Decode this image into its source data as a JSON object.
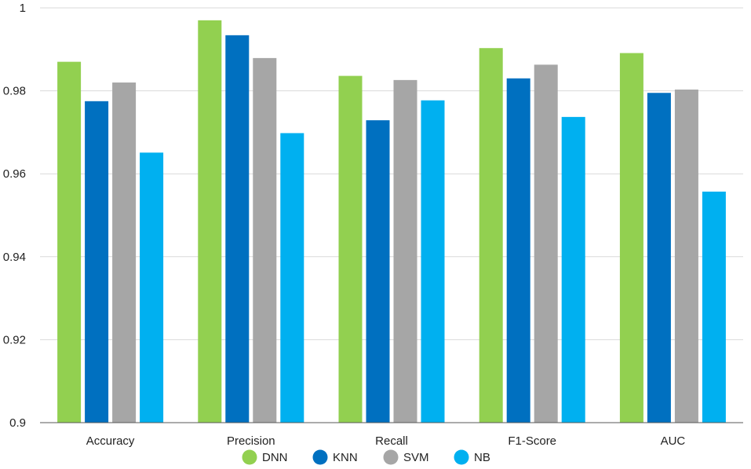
{
  "chart_data": {
    "type": "bar",
    "title": "",
    "xlabel": "",
    "ylabel": "",
    "categories": [
      "Accuracy",
      "Precision",
      "Recall",
      "F1-Score",
      "AUC"
    ],
    "series": [
      {
        "name": "DNN",
        "color": "#92d050",
        "values": [
          0.987,
          0.997,
          0.9836,
          0.9903,
          0.9891
        ]
      },
      {
        "name": "KNN",
        "color": "#0070c0",
        "values": [
          0.9775,
          0.9934,
          0.9729,
          0.983,
          0.9795
        ]
      },
      {
        "name": "SVM",
        "color": "#a6a6a6",
        "values": [
          0.982,
          0.9879,
          0.9826,
          0.9863,
          0.9803
        ]
      },
      {
        "name": "NB",
        "color": "#00b0f0",
        "values": [
          0.9651,
          0.9698,
          0.9777,
          0.9737,
          0.9557
        ]
      }
    ],
    "ylim": [
      0.9,
      1.0
    ],
    "yticks": [
      "0.9",
      "0.92",
      "0.94",
      "0.96",
      "0.98",
      "1"
    ],
    "grid": true,
    "legend_position": "bottom-center"
  }
}
